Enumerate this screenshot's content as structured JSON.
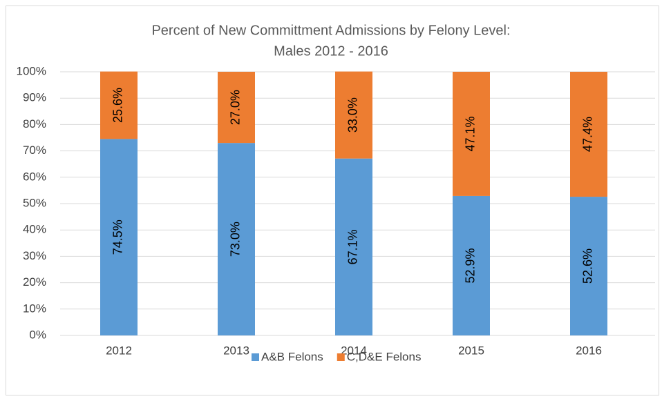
{
  "chart_data": {
    "type": "stacked_bar",
    "title": [
      "Percent of New Committment Admissions by Felony Level:",
      "Males 2012 - 2016"
    ],
    "categories": [
      "2012",
      "2013",
      "2014",
      "2015",
      "2016"
    ],
    "series": [
      {
        "name": "A&B Felons",
        "color": "#5b9bd5",
        "values": [
          74.5,
          73.0,
          67.1,
          52.9,
          52.6
        ],
        "value_labels": [
          "74.5%",
          "73.0%",
          "67.1%",
          "52.9%",
          "52.6%"
        ]
      },
      {
        "name": "C,D&E Felons",
        "color": "#ed7d31",
        "values": [
          25.6,
          27.0,
          33.0,
          47.1,
          47.4
        ],
        "value_labels": [
          "25.6%",
          "27.0%",
          "33.0%",
          "47.1%",
          "47.4%"
        ]
      }
    ],
    "ylim": [
      0,
      100
    ],
    "yticks": [
      {
        "value": 0,
        "label": "0%"
      },
      {
        "value": 10,
        "label": "10%"
      },
      {
        "value": 20,
        "label": "20%"
      },
      {
        "value": 30,
        "label": "30%"
      },
      {
        "value": 40,
        "label": "40%"
      },
      {
        "value": 50,
        "label": "50%"
      },
      {
        "value": 60,
        "label": "60%"
      },
      {
        "value": 70,
        "label": "70%"
      },
      {
        "value": 80,
        "label": "80%"
      },
      {
        "value": 90,
        "label": "90%"
      },
      {
        "value": 100,
        "label": "100%"
      }
    ],
    "grid": true,
    "legend": "bottom"
  }
}
